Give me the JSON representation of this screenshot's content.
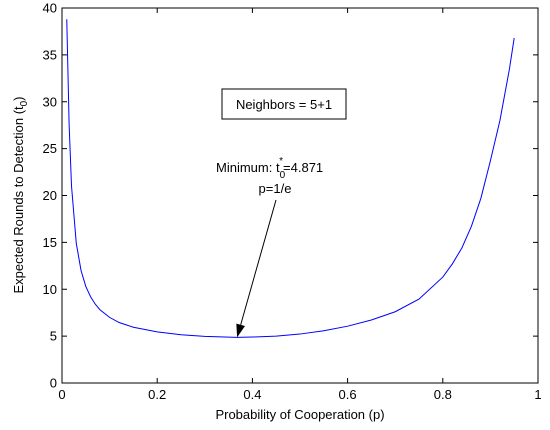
{
  "chart_data": {
    "type": "line",
    "title": "",
    "xlabel": "Probability of Cooperation (p)",
    "ylabel_main": "Expected Rounds to Detection (t",
    "ylabel_sub": "0",
    "ylabel_close": ")",
    "xlim": [
      0,
      1
    ],
    "ylim": [
      0,
      40
    ],
    "xticks": [
      0,
      0.2,
      0.4,
      0.6,
      0.8,
      1
    ],
    "xtick_labels": [
      "0",
      "0.2",
      "0.4",
      "0.6",
      "0.8",
      "1"
    ],
    "yticks": [
      0,
      5,
      10,
      15,
      20,
      25,
      30,
      35,
      40
    ],
    "ytick_labels": [
      "0",
      "5",
      "10",
      "15",
      "20",
      "25",
      "30",
      "35",
      "40"
    ],
    "grid": false,
    "series": [
      {
        "color": "#0000ff",
        "x": [
          0.01,
          0.015,
          0.02,
          0.03,
          0.04,
          0.05,
          0.06,
          0.07,
          0.08,
          0.1,
          0.12,
          0.15,
          0.2,
          0.25,
          0.3,
          0.35,
          0.3679,
          0.4,
          0.45,
          0.5,
          0.55,
          0.6,
          0.65,
          0.7,
          0.75,
          0.8,
          0.82,
          0.84,
          0.86,
          0.88,
          0.9,
          0.92,
          0.94,
          0.95
        ],
        "y": [
          38.8,
          27.5,
          21.0,
          14.9,
          12.0,
          10.3,
          9.2,
          8.4,
          7.8,
          7.0,
          6.45,
          5.95,
          5.45,
          5.15,
          4.97,
          4.89,
          4.871,
          4.9,
          5.0,
          5.22,
          5.57,
          6.06,
          6.72,
          7.6,
          8.95,
          11.3,
          12.7,
          14.4,
          16.7,
          19.7,
          23.7,
          28.0,
          33.5,
          36.8
        ]
      }
    ],
    "legend_box": {
      "text": "Neighbors = 5+1",
      "placement": "upper-center"
    },
    "annotation": {
      "min_label_pre": "Minimum: t",
      "min_label_sub": "0",
      "min_label_sup": "*",
      "min_label_post": "=4.871",
      "p_label": "p=1/e",
      "point_x": 0.3679,
      "point_y": 4.871
    }
  }
}
